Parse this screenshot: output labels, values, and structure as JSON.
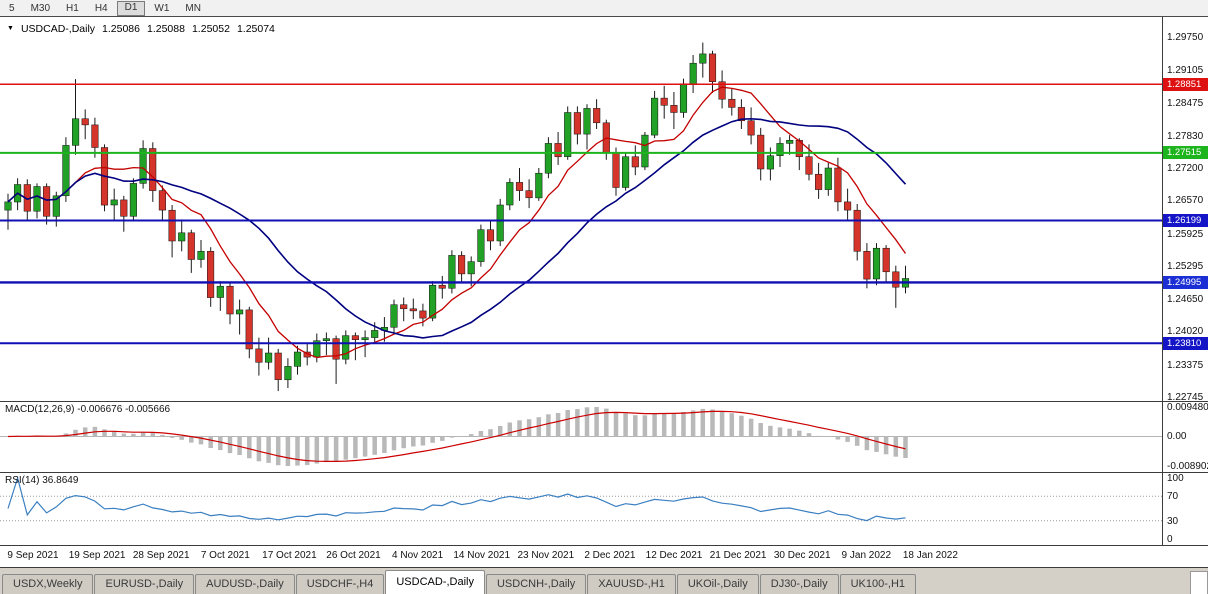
{
  "toolbar": {
    "buttons": [
      "5",
      "M30",
      "H1",
      "H4",
      "D1",
      "W1",
      "MN"
    ],
    "active": "D1"
  },
  "chart": {
    "header": {
      "dropdown_icon": "▼",
      "symbol": "USDCAD-,Daily",
      "open": "1.25086",
      "high": "1.25088",
      "low": "1.25052",
      "close": "1.25074"
    },
    "price_axis": [
      "1.29750",
      "1.29105",
      "1.28475",
      "1.27830",
      "1.27200",
      "1.26570",
      "1.25925",
      "1.25295",
      "1.24650",
      "1.24020",
      "1.23375",
      "1.22745"
    ],
    "hlines": [
      {
        "price": 1.28851,
        "label": "1.28851",
        "color": "#dd1111",
        "tag_bg": "#dd1111",
        "width": 1.5
      },
      {
        "price": 1.27515,
        "label": "1.27515",
        "color": "#1db41d",
        "tag_bg": "#1db41d",
        "width": 2
      },
      {
        "price": 1.26199,
        "label": "1.26199",
        "color": "#0f0fb4",
        "tag_bg": "#1515c8",
        "width": 2
      },
      {
        "price": 1.24995,
        "label": "1.24995",
        "color": "#0f0fb4",
        "tag_bg": "#1b2fd4",
        "width": 2.4
      },
      {
        "price": 1.2381,
        "label": "1.23810",
        "color": "#0f0fb4",
        "tag_bg": "#1515c8",
        "width": 2
      }
    ],
    "dates": [
      "9 Sep 2021",
      "19 Sep 2021",
      "28 Sep 2021",
      "7 Oct 2021",
      "17 Oct 2021",
      "26 Oct 2021",
      "4 Nov 2021",
      "14 Nov 2021",
      "23 Nov 2021",
      "2 Dec 2021",
      "12 Dec 2021",
      "21 Dec 2021",
      "30 Dec 2021",
      "9 Jan 2022",
      "18 Jan 2022"
    ]
  },
  "macd": {
    "label": "MACD(12,26,9) -0.006676 -0.005666",
    "axis_top": "0.009480",
    "axis_zero": "0.00",
    "axis_bottom": "-0.008902"
  },
  "rsi": {
    "label": "RSI(14) 36.8649",
    "levels": [
      100,
      70,
      30,
      0
    ],
    "level_labels": [
      "100",
      "70",
      "30",
      "0"
    ],
    "dotted_levels": [
      70,
      30
    ]
  },
  "tabs": [
    "USDX,Weekly",
    "EURUSD-,Daily",
    "AUDUSD-,Daily",
    "USDCHF-,H4",
    "USDCAD-,Daily",
    "USDCNH-,Daily",
    "XAUUSD-,H1",
    "UKOil-,Daily",
    "DJ30-,Daily",
    "UK100-,H1"
  ],
  "active_tab": "USDCAD-,Daily",
  "chart_data": {
    "type": "candlestick",
    "title": "USDCAD-,Daily",
    "symbol": "USDCAD-",
    "timeframe": "Daily",
    "price_range": [
      1.22745,
      1.2975
    ],
    "level_prices": [
      1.28851,
      1.27515,
      1.26199,
      1.24995,
      1.2381
    ],
    "current_quote": {
      "open": 1.25086,
      "high": 1.25088,
      "low": 1.25052,
      "close": 1.25074
    },
    "ma_fast_period": 8,
    "ma_slow_period": 21,
    "macd_params": [
      12,
      26,
      9
    ],
    "macd_values": [
      -0.006676,
      -0.005666
    ],
    "rsi_period": 14,
    "rsi_value": 36.8649,
    "colors": {
      "up": "#21a126",
      "down": "#d4342a",
      "ma_fast": "#c40000",
      "ma_slow": "#000080",
      "macd_hist": "#b9b9b9",
      "macd_signal": "#cc0000",
      "rsi_line": "#3a7fc1"
    },
    "candles": [
      [
        1.264,
        1.2672,
        1.2602,
        1.2656
      ],
      [
        1.2656,
        1.2702,
        1.264,
        1.269
      ],
      [
        1.269,
        1.27,
        1.2618,
        1.2638
      ],
      [
        1.2638,
        1.2692,
        1.2624,
        1.2686
      ],
      [
        1.2686,
        1.2692,
        1.2612,
        1.2628
      ],
      [
        1.2628,
        1.2676,
        1.2608,
        1.2668
      ],
      [
        1.2668,
        1.2782,
        1.2656,
        1.2766
      ],
      [
        1.2766,
        1.2895,
        1.2748,
        1.2818
      ],
      [
        1.2818,
        1.2836,
        1.2778,
        1.2806
      ],
      [
        1.2806,
        1.282,
        1.2742,
        1.2762
      ],
      [
        1.2762,
        1.2768,
        1.2638,
        1.265
      ],
      [
        1.265,
        1.2682,
        1.2618,
        1.266
      ],
      [
        1.266,
        1.2668,
        1.2598,
        1.2628
      ],
      [
        1.2628,
        1.2702,
        1.2618,
        1.2692
      ],
      [
        1.2692,
        1.2776,
        1.2682,
        1.276
      ],
      [
        1.276,
        1.2772,
        1.2656,
        1.2678
      ],
      [
        1.2678,
        1.2688,
        1.2618,
        1.264
      ],
      [
        1.264,
        1.265,
        1.2548,
        1.258
      ],
      [
        1.258,
        1.2622,
        1.256,
        1.2596
      ],
      [
        1.2596,
        1.2602,
        1.2518,
        1.2544
      ],
      [
        1.2544,
        1.2582,
        1.2528,
        1.256
      ],
      [
        1.256,
        1.2568,
        1.2452,
        1.247
      ],
      [
        1.247,
        1.2502,
        1.2444,
        1.2492
      ],
      [
        1.2492,
        1.25,
        1.2418,
        1.2438
      ],
      [
        1.2438,
        1.2466,
        1.2398,
        1.2446
      ],
      [
        1.2446,
        1.2452,
        1.2352,
        1.237
      ],
      [
        1.237,
        1.2392,
        1.2318,
        1.2344
      ],
      [
        1.2344,
        1.2392,
        1.233,
        1.2362
      ],
      [
        1.2362,
        1.237,
        1.2288,
        1.231
      ],
      [
        1.231,
        1.2352,
        1.2294,
        1.2336
      ],
      [
        1.2336,
        1.2376,
        1.232,
        1.2364
      ],
      [
        1.2364,
        1.238,
        1.2338,
        1.2354
      ],
      [
        1.2354,
        1.24,
        1.2344,
        1.2386
      ],
      [
        1.2386,
        1.2402,
        1.2358,
        1.239
      ],
      [
        1.239,
        1.2396,
        1.2302,
        1.235
      ],
      [
        1.235,
        1.2406,
        1.234,
        1.2396
      ],
      [
        1.2396,
        1.2402,
        1.2348,
        1.2388
      ],
      [
        1.2388,
        1.2406,
        1.2354,
        1.2392
      ],
      [
        1.2392,
        1.2422,
        1.238,
        1.2406
      ],
      [
        1.2406,
        1.2432,
        1.2384,
        1.2412
      ],
      [
        1.2412,
        1.2466,
        1.24,
        1.2456
      ],
      [
        1.2456,
        1.247,
        1.2424,
        1.2448
      ],
      [
        1.2448,
        1.2468,
        1.2428,
        1.2444
      ],
      [
        1.2444,
        1.2458,
        1.2414,
        1.243
      ],
      [
        1.243,
        1.2502,
        1.2424,
        1.2494
      ],
      [
        1.2494,
        1.2512,
        1.2468,
        1.2488
      ],
      [
        1.2488,
        1.2562,
        1.2478,
        1.2552
      ],
      [
        1.2552,
        1.256,
        1.2498,
        1.2516
      ],
      [
        1.2516,
        1.255,
        1.2492,
        1.254
      ],
      [
        1.254,
        1.2612,
        1.253,
        1.2602
      ],
      [
        1.2602,
        1.262,
        1.2562,
        1.258
      ],
      [
        1.258,
        1.2662,
        1.257,
        1.265
      ],
      [
        1.265,
        1.2702,
        1.264,
        1.2694
      ],
      [
        1.2694,
        1.2722,
        1.2658,
        1.2678
      ],
      [
        1.2678,
        1.27,
        1.2644,
        1.2664
      ],
      [
        1.2664,
        1.2722,
        1.2658,
        1.2712
      ],
      [
        1.2712,
        1.2782,
        1.2702,
        1.277
      ],
      [
        1.277,
        1.2792,
        1.2728,
        1.2744
      ],
      [
        1.2744,
        1.2842,
        1.2738,
        1.283
      ],
      [
        1.283,
        1.2842,
        1.2768,
        1.2788
      ],
      [
        1.2788,
        1.2846,
        1.2758,
        1.2838
      ],
      [
        1.2838,
        1.2856,
        1.2798,
        1.281
      ],
      [
        1.281,
        1.2816,
        1.2738,
        1.2752
      ],
      [
        1.2752,
        1.2762,
        1.2668,
        1.2684
      ],
      [
        1.2684,
        1.2752,
        1.2678,
        1.2744
      ],
      [
        1.2744,
        1.2766,
        1.2708,
        1.2724
      ],
      [
        1.2724,
        1.2792,
        1.2718,
        1.2786
      ],
      [
        1.2786,
        1.2872,
        1.278,
        1.2858
      ],
      [
        1.2858,
        1.2882,
        1.2818,
        1.2844
      ],
      [
        1.2844,
        1.287,
        1.2798,
        1.283
      ],
      [
        1.283,
        1.2896,
        1.282,
        1.2886
      ],
      [
        1.2886,
        1.2942,
        1.2868,
        1.2926
      ],
      [
        1.2926,
        1.2966,
        1.2898,
        1.2944
      ],
      [
        1.2944,
        1.295,
        1.2868,
        1.289
      ],
      [
        1.289,
        1.2912,
        1.2838,
        1.2856
      ],
      [
        1.2856,
        1.2876,
        1.2824,
        1.284
      ],
      [
        1.284,
        1.2856,
        1.2798,
        1.2814
      ],
      [
        1.2814,
        1.284,
        1.2768,
        1.2786
      ],
      [
        1.2786,
        1.28,
        1.2698,
        1.272
      ],
      [
        1.272,
        1.2762,
        1.2698,
        1.2746
      ],
      [
        1.2746,
        1.2782,
        1.2724,
        1.277
      ],
      [
        1.277,
        1.2786,
        1.2748,
        1.2776
      ],
      [
        1.2776,
        1.278,
        1.2718,
        1.2744
      ],
      [
        1.2744,
        1.2768,
        1.2698,
        1.271
      ],
      [
        1.271,
        1.2732,
        1.2662,
        1.268
      ],
      [
        1.268,
        1.2732,
        1.2668,
        1.2722
      ],
      [
        1.2722,
        1.2742,
        1.2638,
        1.2656
      ],
      [
        1.2656,
        1.2682,
        1.2618,
        1.264
      ],
      [
        1.264,
        1.2652,
        1.2542,
        1.256
      ],
      [
        1.256,
        1.2576,
        1.2488,
        1.2506
      ],
      [
        1.2506,
        1.2576,
        1.2494,
        1.2566
      ],
      [
        1.2566,
        1.2572,
        1.2498,
        1.252
      ],
      [
        1.252,
        1.2532,
        1.245,
        1.249
      ],
      [
        1.249,
        1.2532,
        1.2478,
        1.2507
      ]
    ]
  }
}
